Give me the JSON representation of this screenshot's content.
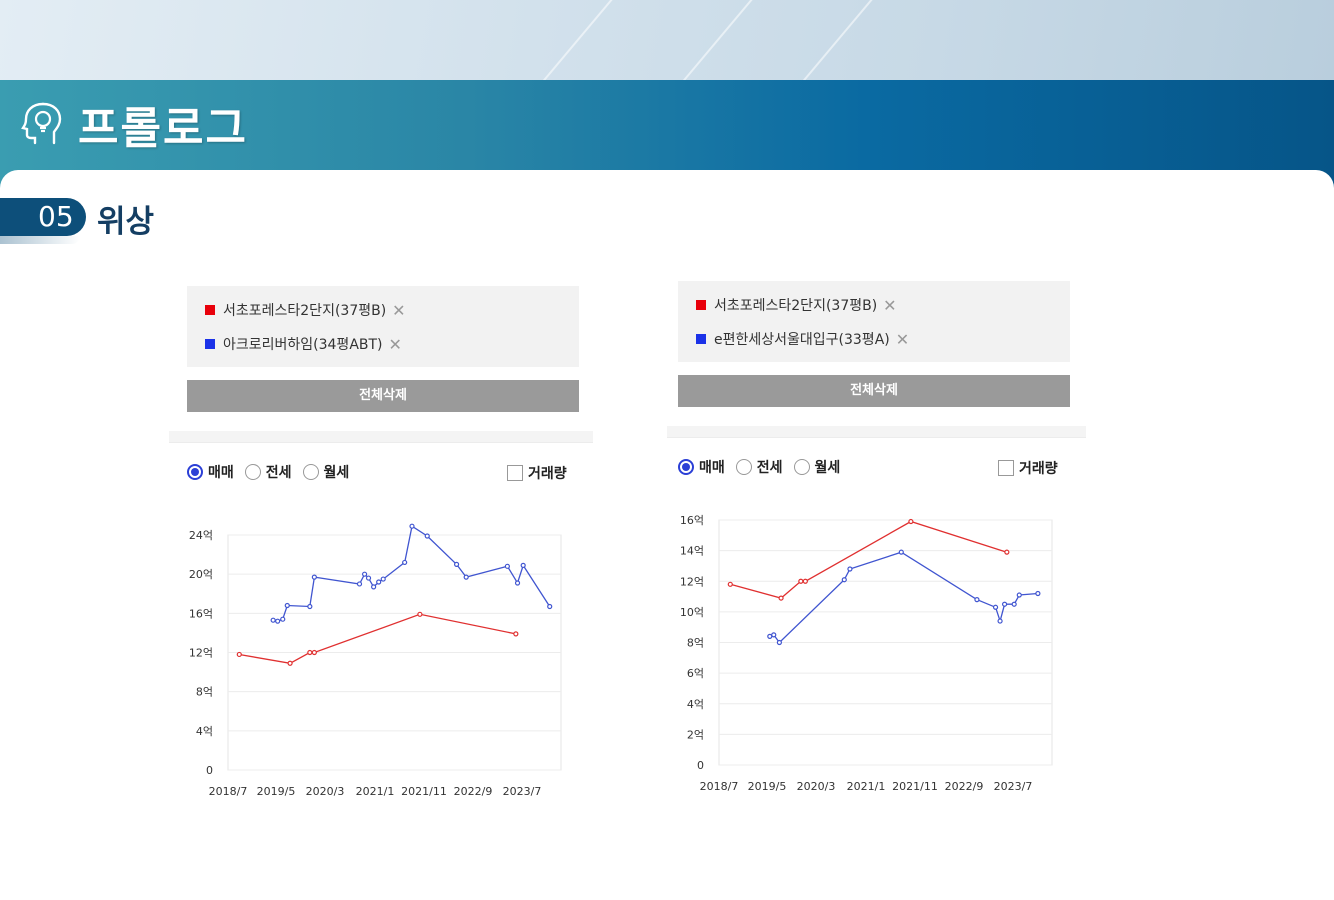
{
  "header": {
    "title": "프롤로그",
    "icon": "head-lightbulb-icon"
  },
  "section": {
    "number": "05",
    "title": "위상"
  },
  "colors": {
    "series_red": "#e03030",
    "series_blue": "#4055d0",
    "radio_selected": "#2b3fd6",
    "banner": "#0a6aa2"
  },
  "charts": [
    {
      "legend": [
        {
          "label": "서초포레스타2단지(37평B)",
          "color": "#e8000b"
        },
        {
          "label": "아크로리버하임(34평ABT)",
          "color": "#1b32e8"
        }
      ],
      "delete_all_label": "전체삭제",
      "radios": [
        {
          "label": "매매",
          "selected": true
        },
        {
          "label": "전세",
          "selected": false
        },
        {
          "label": "월세",
          "selected": false
        }
      ],
      "volume_label": "거래량"
    },
    {
      "legend": [
        {
          "label": "서초포레스타2단지(37평B)",
          "color": "#e8000b"
        },
        {
          "label": "e편한세상서울대입구(33평A)",
          "color": "#1b32e8"
        }
      ],
      "delete_all_label": "전체삭제",
      "radios": [
        {
          "label": "매매",
          "selected": true
        },
        {
          "label": "전세",
          "selected": false
        },
        {
          "label": "월세",
          "selected": false
        }
      ],
      "volume_label": "거래량"
    }
  ],
  "chart_data": [
    {
      "type": "line",
      "x_tick_labels": [
        "2018/7",
        "2019/5",
        "2020/3",
        "2021/1",
        "2021/11",
        "2022/9",
        "2023/7"
      ],
      "y_tick_labels": [
        "0",
        "4억",
        "8억",
        "12억",
        "16억",
        "20억",
        "24억"
      ],
      "ylim": [
        0,
        24
      ],
      "xlim": [
        2018.5,
        2024.4
      ],
      "grid": true,
      "series": [
        {
          "name": "서초포레스타2단지(37평B)",
          "color": "#e03030",
          "points": [
            [
              2018.7,
              11.8
            ],
            [
              2019.6,
              10.9
            ],
            [
              2019.95,
              12.0
            ],
            [
              2020.03,
              12.0
            ],
            [
              2021.9,
              15.9
            ],
            [
              2023.6,
              13.9
            ]
          ]
        },
        {
          "name": "아크로리버하임(34평ABT)",
          "color": "#4055d0",
          "points": [
            [
              2019.3,
              15.3
            ],
            [
              2019.38,
              15.2
            ],
            [
              2019.47,
              15.4
            ],
            [
              2019.55,
              16.8
            ],
            [
              2019.95,
              16.7
            ],
            [
              2020.03,
              19.7
            ],
            [
              2020.83,
              19.0
            ],
            [
              2020.92,
              20.0
            ],
            [
              2020.99,
              19.6
            ],
            [
              2021.08,
              18.7
            ],
            [
              2021.17,
              19.2
            ],
            [
              2021.25,
              19.5
            ],
            [
              2021.63,
              21.2
            ],
            [
              2021.76,
              24.9
            ],
            [
              2022.03,
              23.9
            ],
            [
              2022.55,
              21.0
            ],
            [
              2022.72,
              19.7
            ],
            [
              2023.45,
              20.8
            ],
            [
              2023.63,
              19.1
            ],
            [
              2023.73,
              20.9
            ],
            [
              2024.2,
              16.7
            ]
          ]
        }
      ]
    },
    {
      "type": "line",
      "x_tick_labels": [
        "2018/7",
        "2019/5",
        "2020/3",
        "2021/1",
        "2021/11",
        "2022/9",
        "2023/7"
      ],
      "y_tick_labels": [
        "0",
        "2억",
        "4억",
        "6억",
        "8억",
        "10억",
        "12억",
        "14억",
        "16억"
      ],
      "ylim": [
        0,
        16
      ],
      "xlim": [
        2018.5,
        2024.4
      ],
      "grid": true,
      "series": [
        {
          "name": "서초포레스타2단지(37평B)",
          "color": "#e03030",
          "points": [
            [
              2018.7,
              11.8
            ],
            [
              2019.6,
              10.9
            ],
            [
              2019.95,
              12.0
            ],
            [
              2020.03,
              12.0
            ],
            [
              2021.9,
              15.9
            ],
            [
              2023.6,
              13.9
            ]
          ]
        },
        {
          "name": "e편한세상서울대입구(33평A)",
          "color": "#4055d0",
          "points": [
            [
              2019.4,
              8.4
            ],
            [
              2019.47,
              8.5
            ],
            [
              2019.57,
              8.0
            ],
            [
              2020.72,
              12.1
            ],
            [
              2020.82,
              12.8
            ],
            [
              2021.73,
              13.9
            ],
            [
              2023.07,
              10.8
            ],
            [
              2023.4,
              10.3
            ],
            [
              2023.48,
              9.4
            ],
            [
              2023.56,
              10.5
            ],
            [
              2023.73,
              10.5
            ],
            [
              2023.82,
              11.1
            ],
            [
              2024.15,
              11.2
            ]
          ]
        }
      ]
    }
  ]
}
